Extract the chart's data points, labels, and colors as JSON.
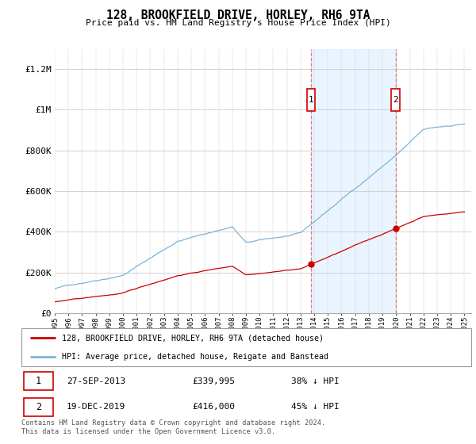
{
  "title": "128, BROOKFIELD DRIVE, HORLEY, RH6 9TA",
  "subtitle": "Price paid vs. HM Land Registry's House Price Index (HPI)",
  "legend_line1": "128, BROOKFIELD DRIVE, HORLEY, RH6 9TA (detached house)",
  "legend_line2": "HPI: Average price, detached house, Reigate and Banstead",
  "sale1_label": "1",
  "sale1_date": "27-SEP-2013",
  "sale1_price": "£339,995",
  "sale1_note": "38% ↓ HPI",
  "sale2_label": "2",
  "sale2_date": "19-DEC-2019",
  "sale2_price": "£416,000",
  "sale2_note": "45% ↓ HPI",
  "footer": "Contains HM Land Registry data © Crown copyright and database right 2024.\nThis data is licensed under the Open Government Licence v3.0.",
  "hpi_color": "#7ab4d8",
  "price_color": "#cc0000",
  "vline_color": "#e87878",
  "shade_color": "#ddeeff",
  "ylim": [
    0,
    1300000
  ],
  "yticks": [
    0,
    200000,
    400000,
    600000,
    800000,
    1000000,
    1200000
  ],
  "ytick_labels": [
    "£0",
    "£200K",
    "£400K",
    "£600K",
    "£800K",
    "£1M",
    "£1.2M"
  ],
  "sale1_year": 2013.75,
  "sale2_year": 2019.96,
  "sale1_price_val": 339995,
  "sale2_price_val": 416000
}
